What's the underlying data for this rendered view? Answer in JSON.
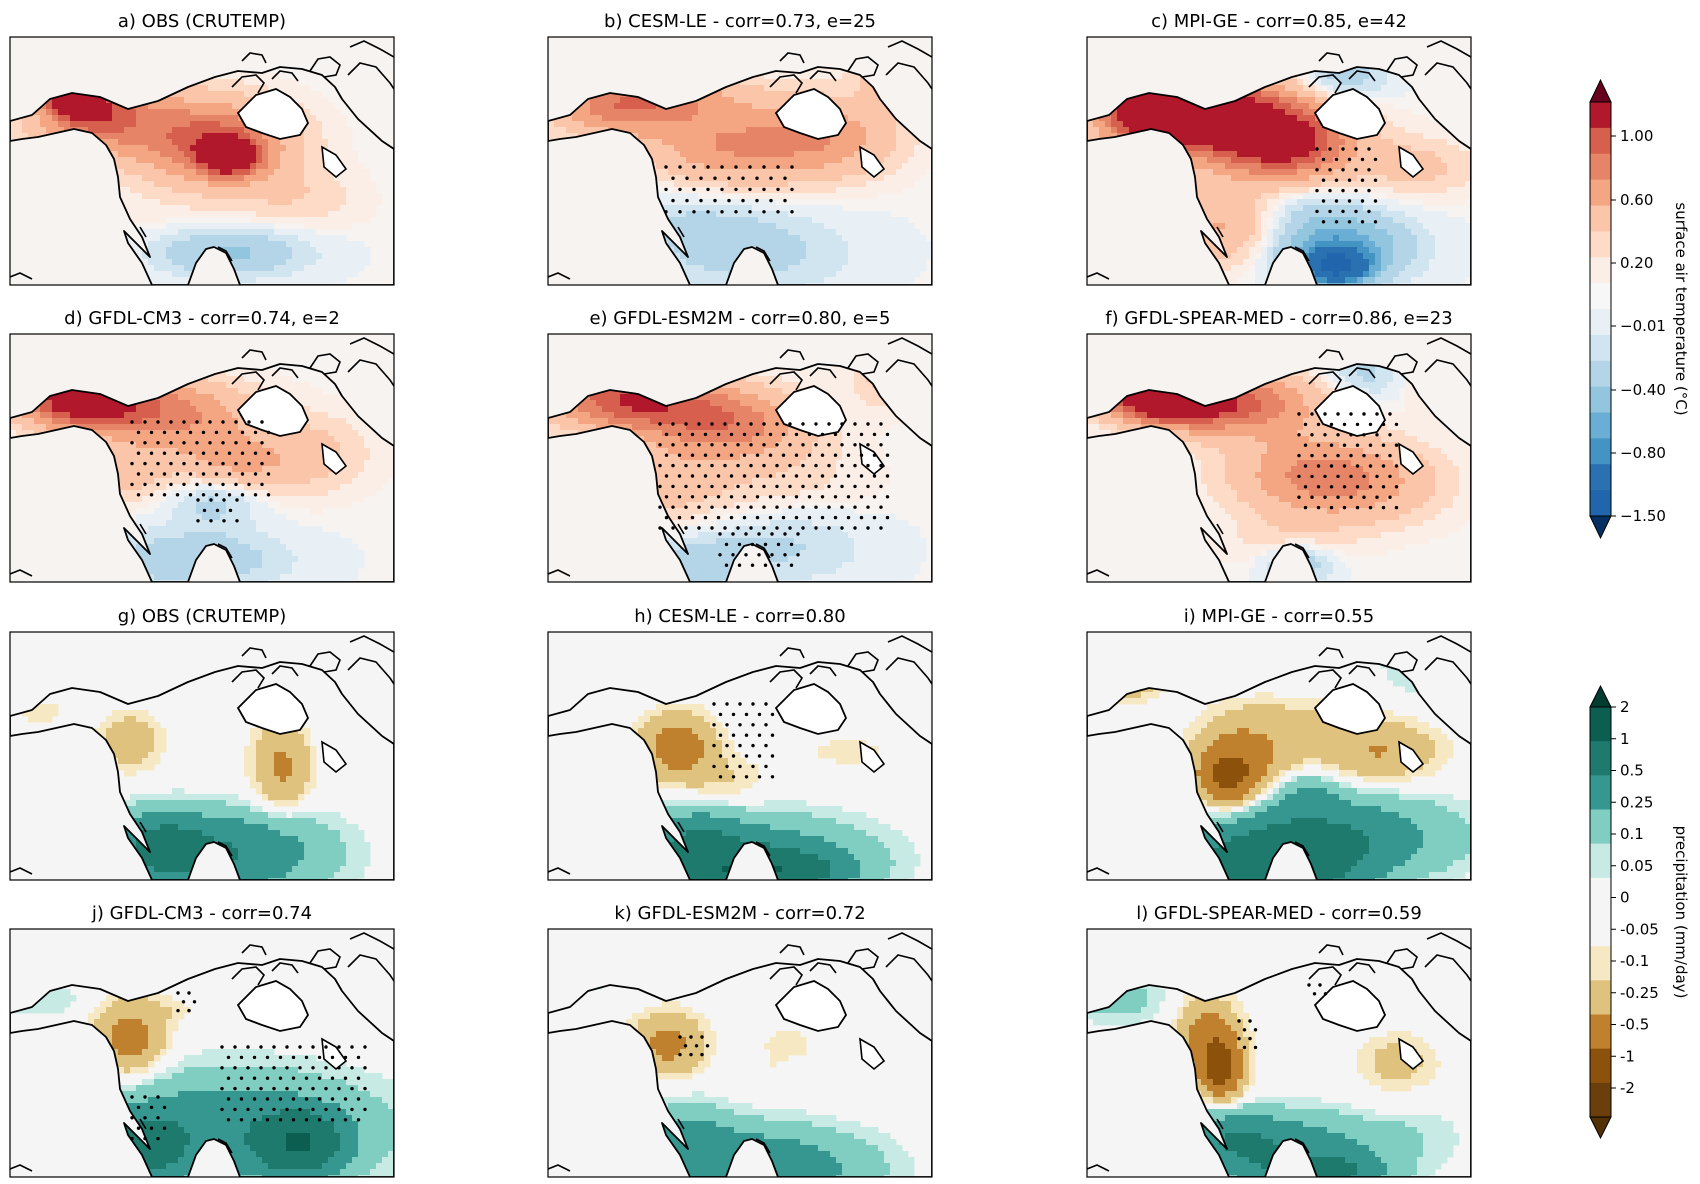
{
  "figure": {
    "panels": [
      {
        "id": "a",
        "title": "a) OBS (CRUTEMP)",
        "variable": "temperature",
        "pattern": "obs_t"
      },
      {
        "id": "b",
        "title": "b) CESM-LE - corr=0.73, e=25",
        "variable": "temperature",
        "pattern": "cesm_t"
      },
      {
        "id": "c",
        "title": "c) MPI-GE - corr=0.85, e=42",
        "variable": "temperature",
        "pattern": "mpi_t"
      },
      {
        "id": "d",
        "title": "d) GFDL-CM3 - corr=0.74, e=2",
        "variable": "temperature",
        "pattern": "cm3_t"
      },
      {
        "id": "e",
        "title": "e) GFDL-ESM2M - corr=0.80, e=5",
        "variable": "temperature",
        "pattern": "esm2m_t"
      },
      {
        "id": "f",
        "title": "f) GFDL-SPEAR-MED - corr=0.86, e=23",
        "variable": "temperature",
        "pattern": "spear_t"
      },
      {
        "id": "g",
        "title": "g) OBS (CRUTEMP)",
        "variable": "precipitation",
        "pattern": "obs_p"
      },
      {
        "id": "h",
        "title": "h) CESM-LE - corr=0.80",
        "variable": "precipitation",
        "pattern": "cesm_p"
      },
      {
        "id": "i",
        "title": "i) MPI-GE - corr=0.55",
        "variable": "precipitation",
        "pattern": "mpi_p"
      },
      {
        "id": "j",
        "title": "j) GFDL-CM3 - corr=0.74",
        "variable": "precipitation",
        "pattern": "cm3_p"
      },
      {
        "id": "k",
        "title": "k) GFDL-ESM2M - corr=0.72",
        "variable": "precipitation",
        "pattern": "esm2m_p"
      },
      {
        "id": "l",
        "title": "l) GFDL-SPEAR-MED - corr=0.59",
        "variable": "precipitation",
        "pattern": "spear_p"
      }
    ],
    "colorbars": [
      {
        "id": "temperature",
        "title": "surface air temperature (°C)",
        "tick_labels": [
          "1.00",
          "0.60",
          "0.20",
          "−0.01",
          "−0.40",
          "−0.80",
          "−1.50"
        ],
        "colors_top_to_bottom": [
          "#b2182b",
          "#d6604d",
          "#e68468",
          "#f4a582",
          "#fbc5a9",
          "#fddbc7",
          "#fbeee6",
          "#f7f7f7",
          "#e8f0f5",
          "#d1e5f0",
          "#b4d4e8",
          "#92c5de",
          "#6aaed6",
          "#4393c3",
          "#2a71b2",
          "#2166ac"
        ],
        "extend_top": "#67001f",
        "extend_bottom": "#053061"
      },
      {
        "id": "precipitation",
        "title": "precipitation (mm/day)",
        "tick_labels": [
          "2",
          "1",
          "0.5",
          "0.25",
          "0.1",
          "0.05",
          "0",
          "-0.05",
          "-0.1",
          "-0.25",
          "-0.5",
          "-1",
          "-2"
        ],
        "colors_top_to_bottom": [
          "#0b5e50",
          "#1d7a6c",
          "#35978f",
          "#80cdc1",
          "#c7eae5",
          "#f5f5f5",
          "#f5f5f5",
          "#f6e8c3",
          "#dfc27d",
          "#bf812d",
          "#8c510a",
          "#6b3f0c"
        ],
        "extend_top": "#003c30",
        "extend_bottom": "#543005"
      }
    ],
    "colors": {
      "background": "#ffffff",
      "ocean_temp": "#f6f3f1",
      "ocean_precip": "#f5f5f5",
      "coast": "#000000"
    }
  }
}
